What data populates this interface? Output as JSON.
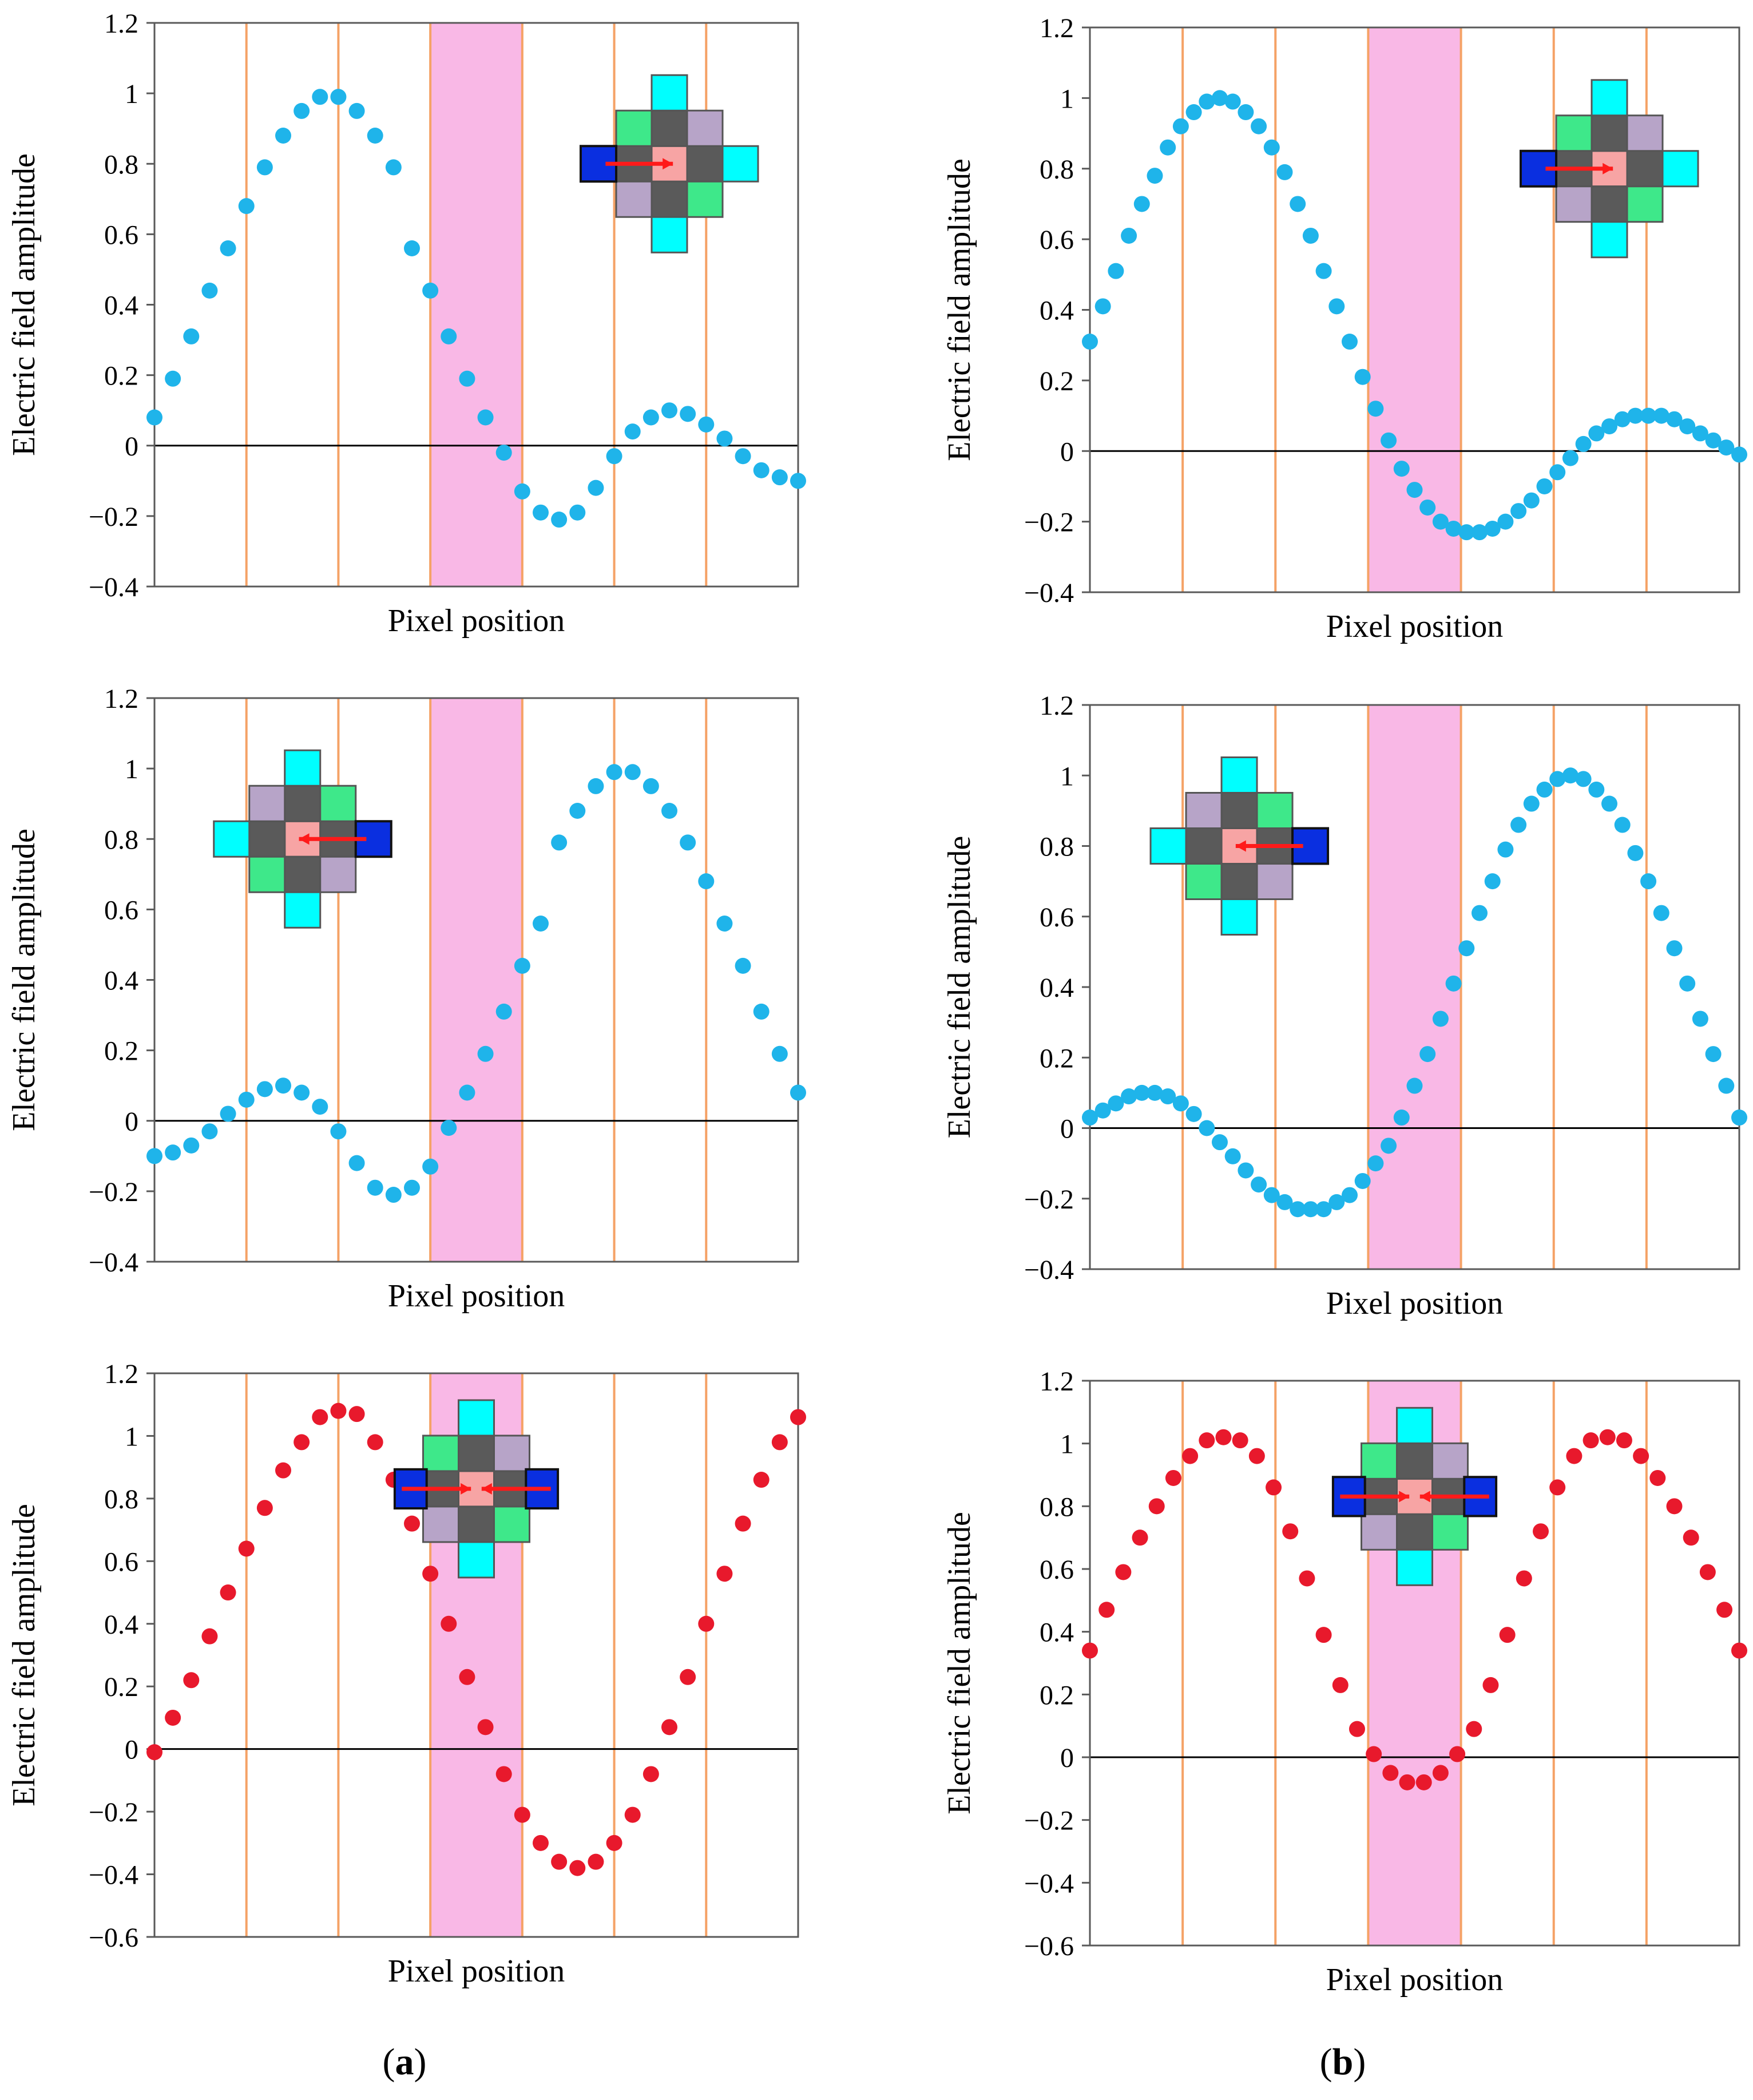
{
  "figure": {
    "panel_labels": [
      "(a)",
      "(b)"
    ],
    "marker_colors": {
      "blue": "#1FB4EA",
      "red": "#E8192C"
    },
    "band_color": "#F9B8E6",
    "divider_color": "#F5A266",
    "inset_colors": {
      "pink": "#F7A4A4",
      "dark": "#5A5A5A",
      "green": "#3EE88A",
      "lilac": "#B7A4C8",
      "cyan": "#00FFFF",
      "blue": "#0A2FE0",
      "arrow": "#FF1A1A"
    }
  },
  "chart_data": [
    {
      "id": "a-top",
      "column": "a",
      "row": 1,
      "type": "scatter",
      "xlabel": "Pixel position",
      "ylabel": "Electric field amplitude",
      "ylim": [
        -0.4,
        1.2
      ],
      "yticks": [
        "1.2",
        "1",
        "0.8",
        "0.6",
        "0.4",
        "0.2",
        "0",
        "−0.2",
        "−0.4"
      ],
      "pixel_boundaries": [
        1,
        2,
        3,
        4,
        5,
        6
      ],
      "highlighted_pixel": [
        3,
        4
      ],
      "x_range": [
        0,
        7
      ],
      "color": "blue",
      "inset": {
        "position": "top-right",
        "mode": "right"
      },
      "x": [
        0.0,
        0.2,
        0.4,
        0.6,
        0.8,
        1.0,
        1.2,
        1.4,
        1.6,
        1.8,
        2.0,
        2.2,
        2.4,
        2.6,
        2.8,
        3.0,
        3.2,
        3.4,
        3.6,
        3.8,
        4.0,
        4.2,
        4.4,
        4.6,
        4.8,
        5.0,
        5.2,
        5.4,
        5.6,
        5.8,
        6.0,
        6.2,
        6.4,
        6.6,
        6.8,
        7.0
      ],
      "y": [
        0.08,
        0.19,
        0.31,
        0.44,
        0.56,
        0.68,
        0.79,
        0.88,
        0.95,
        0.99,
        0.99,
        0.95,
        0.88,
        0.79,
        0.56,
        0.44,
        0.31,
        0.19,
        0.08,
        -0.02,
        -0.13,
        -0.19,
        -0.21,
        -0.19,
        -0.12,
        -0.03,
        0.04,
        0.08,
        0.1,
        0.09,
        0.06,
        0.02,
        -0.03,
        -0.07,
        -0.09,
        -0.1
      ]
    },
    {
      "id": "b-top",
      "column": "b",
      "row": 1,
      "type": "scatter",
      "xlabel": "Pixel position",
      "ylabel": "Electric field amplitude",
      "ylim": [
        -0.4,
        1.2
      ],
      "yticks": [
        "1.2",
        "1",
        "0.8",
        "0.6",
        "0.4",
        "0.2",
        "0",
        "−0.2",
        "−0.4"
      ],
      "pixel_boundaries": [
        1,
        2,
        3,
        4,
        5,
        6
      ],
      "highlighted_pixel": [
        3,
        4
      ],
      "x_range": [
        0,
        7
      ],
      "color": "blue",
      "inset": {
        "position": "top-right",
        "mode": "right"
      },
      "x": [
        0.0,
        0.14,
        0.28,
        0.42,
        0.56,
        0.7,
        0.84,
        0.98,
        1.12,
        1.26,
        1.4,
        1.54,
        1.68,
        1.82,
        1.96,
        2.1,
        2.24,
        2.38,
        2.52,
        2.66,
        2.8,
        2.94,
        3.08,
        3.22,
        3.36,
        3.5,
        3.64,
        3.78,
        3.92,
        4.06,
        4.2,
        4.34,
        4.48,
        4.62,
        4.76,
        4.9,
        5.04,
        5.18,
        5.32,
        5.46,
        5.6,
        5.74,
        5.88,
        6.02,
        6.16,
        6.3,
        6.44,
        6.58,
        6.72,
        6.86,
        7.0
      ],
      "y": [
        0.31,
        0.41,
        0.51,
        0.61,
        0.7,
        0.78,
        0.86,
        0.92,
        0.96,
        0.99,
        1.0,
        0.99,
        0.96,
        0.92,
        0.86,
        0.79,
        0.7,
        0.61,
        0.51,
        0.41,
        0.31,
        0.21,
        0.12,
        0.03,
        -0.05,
        -0.11,
        -0.16,
        -0.2,
        -0.22,
        -0.23,
        -0.23,
        -0.22,
        -0.2,
        -0.17,
        -0.14,
        -0.1,
        -0.06,
        -0.02,
        0.02,
        0.05,
        0.07,
        0.09,
        0.1,
        0.1,
        0.1,
        0.09,
        0.07,
        0.05,
        0.03,
        0.01,
        -0.01
      ]
    },
    {
      "id": "a-mid",
      "column": "a",
      "row": 2,
      "type": "scatter",
      "xlabel": "Pixel position",
      "ylabel": "Electric field amplitude",
      "ylim": [
        -0.4,
        1.2
      ],
      "yticks": [
        "1.2",
        "1",
        "0.8",
        "0.6",
        "0.4",
        "0.2",
        "0",
        "−0.2",
        "−0.4"
      ],
      "pixel_boundaries": [
        1,
        2,
        3,
        4,
        5,
        6
      ],
      "highlighted_pixel": [
        3,
        4
      ],
      "x_range": [
        0,
        7
      ],
      "color": "blue",
      "inset": {
        "position": "top-left",
        "mode": "left"
      },
      "x": [
        0.0,
        0.2,
        0.4,
        0.6,
        0.8,
        1.0,
        1.2,
        1.4,
        1.6,
        1.8,
        2.0,
        2.2,
        2.4,
        2.6,
        2.8,
        3.0,
        3.2,
        3.4,
        3.6,
        3.8,
        4.0,
        4.2,
        4.4,
        4.6,
        4.8,
        5.0,
        5.2,
        5.4,
        5.6,
        5.8,
        6.0,
        6.2,
        6.4,
        6.6,
        6.8,
        7.0
      ],
      "y": [
        -0.1,
        -0.09,
        -0.07,
        -0.03,
        0.02,
        0.06,
        0.09,
        0.1,
        0.08,
        0.04,
        -0.03,
        -0.12,
        -0.19,
        -0.21,
        -0.19,
        -0.13,
        -0.02,
        0.08,
        0.19,
        0.31,
        0.44,
        0.56,
        0.79,
        0.88,
        0.95,
        0.99,
        0.99,
        0.95,
        0.88,
        0.79,
        0.68,
        0.56,
        0.44,
        0.31,
        0.19,
        0.08
      ]
    },
    {
      "id": "b-mid",
      "column": "b",
      "row": 2,
      "type": "scatter",
      "xlabel": "Pixel position",
      "ylabel": "Electric field amplitude",
      "ylim": [
        -0.4,
        1.2
      ],
      "yticks": [
        "1.2",
        "1",
        "0.8",
        "0.6",
        "0.4",
        "0.2",
        "0",
        "−0.2",
        "−0.4"
      ],
      "pixel_boundaries": [
        1,
        2,
        3,
        4,
        5,
        6
      ],
      "highlighted_pixel": [
        3,
        4
      ],
      "x_range": [
        0,
        7
      ],
      "color": "blue",
      "inset": {
        "position": "top-left",
        "mode": "left"
      },
      "x": [
        0.0,
        0.14,
        0.28,
        0.42,
        0.56,
        0.7,
        0.84,
        0.98,
        1.12,
        1.26,
        1.4,
        1.54,
        1.68,
        1.82,
        1.96,
        2.1,
        2.24,
        2.38,
        2.52,
        2.66,
        2.8,
        2.94,
        3.08,
        3.22,
        3.36,
        3.5,
        3.64,
        3.78,
        3.92,
        4.06,
        4.2,
        4.34,
        4.48,
        4.62,
        4.76,
        4.9,
        5.04,
        5.18,
        5.32,
        5.46,
        5.6,
        5.74,
        5.88,
        6.02,
        6.16,
        6.3,
        6.44,
        6.58,
        6.72,
        6.86,
        7.0
      ],
      "y": [
        0.03,
        0.05,
        0.07,
        0.09,
        0.1,
        0.1,
        0.09,
        0.07,
        0.04,
        0.0,
        -0.04,
        -0.08,
        -0.12,
        -0.16,
        -0.19,
        -0.21,
        -0.23,
        -0.23,
        -0.23,
        -0.21,
        -0.19,
        -0.15,
        -0.1,
        -0.05,
        0.03,
        0.12,
        0.21,
        0.31,
        0.41,
        0.51,
        0.61,
        0.7,
        0.79,
        0.86,
        0.92,
        0.96,
        0.99,
        1.0,
        0.99,
        0.96,
        0.92,
        0.86,
        0.78,
        0.7,
        0.61,
        0.51,
        0.41,
        0.31,
        0.21,
        0.12,
        0.03
      ]
    },
    {
      "id": "a-bot",
      "column": "a",
      "row": 3,
      "type": "scatter",
      "xlabel": "Pixel position",
      "ylabel": "Electric field amplitude",
      "ylim": [
        -0.6,
        1.2
      ],
      "yticks": [
        "1.2",
        "1",
        "0.8",
        "0.6",
        "0.4",
        "0.2",
        "0",
        "−0.2",
        "−0.4",
        "−0.6"
      ],
      "pixel_boundaries": [
        1,
        2,
        3,
        4,
        5,
        6
      ],
      "highlighted_pixel": [
        3,
        4
      ],
      "x_range": [
        0,
        7
      ],
      "color": "red",
      "inset": {
        "position": "top-center",
        "mode": "both"
      },
      "x": [
        0.0,
        0.2,
        0.4,
        0.6,
        0.8,
        1.0,
        1.2,
        1.4,
        1.6,
        1.8,
        2.0,
        2.2,
        2.4,
        2.6,
        2.8,
        3.0,
        3.2,
        3.4,
        3.6,
        3.8,
        4.0,
        4.2,
        4.4,
        4.6,
        4.8,
        5.0,
        5.2,
        5.4,
        5.6,
        5.8,
        6.0,
        6.2,
        6.4,
        6.6,
        6.8,
        7.0
      ],
      "y": [
        -0.01,
        0.1,
        0.22,
        0.36,
        0.5,
        0.64,
        0.77,
        0.89,
        0.98,
        1.06,
        1.08,
        1.07,
        0.98,
        0.86,
        0.72,
        0.56,
        0.4,
        0.23,
        0.07,
        -0.08,
        -0.21,
        -0.3,
        -0.36,
        -0.38,
        -0.36,
        -0.3,
        -0.21,
        -0.08,
        0.07,
        0.23,
        0.4,
        0.56,
        0.72,
        0.86,
        0.98,
        1.06
      ]
    },
    {
      "id": "b-bot",
      "column": "b",
      "row": 3,
      "type": "scatter",
      "xlabel": "Pixel position",
      "ylabel": "Electric field amplitude",
      "ylim": [
        -0.6,
        1.2
      ],
      "yticks": [
        "1.2",
        "1",
        "0.8",
        "0.6",
        "0.4",
        "0.2",
        "0",
        "−0.2",
        "−0.4",
        "−0.6"
      ],
      "pixel_boundaries": [
        1,
        2,
        3,
        4,
        5,
        6
      ],
      "highlighted_pixel": [
        3,
        4
      ],
      "x_range": [
        0,
        7
      ],
      "color": "red",
      "inset": {
        "position": "top-center",
        "mode": "both"
      },
      "x": [
        0.0,
        0.18,
        0.36,
        0.54,
        0.72,
        0.9,
        1.08,
        1.26,
        1.44,
        1.62,
        1.8,
        1.98,
        2.16,
        2.34,
        2.52,
        2.7,
        2.88,
        3.06,
        3.24,
        3.42,
        3.6,
        3.78,
        3.96,
        4.14,
        4.32,
        4.5,
        4.68,
        4.86,
        5.04,
        5.22,
        5.4,
        5.58,
        5.76,
        5.94,
        6.12,
        6.3,
        6.48,
        6.66,
        6.84,
        7.0
      ],
      "y": [
        0.34,
        0.47,
        0.59,
        0.7,
        0.8,
        0.89,
        0.96,
        1.01,
        1.02,
        1.01,
        0.96,
        0.86,
        0.72,
        0.57,
        0.39,
        0.23,
        0.09,
        0.01,
        -0.05,
        -0.08,
        -0.08,
        -0.05,
        0.01,
        0.09,
        0.23,
        0.39,
        0.57,
        0.72,
        0.86,
        0.96,
        1.01,
        1.02,
        1.01,
        0.96,
        0.89,
        0.8,
        0.7,
        0.59,
        0.47,
        0.34
      ]
    }
  ]
}
